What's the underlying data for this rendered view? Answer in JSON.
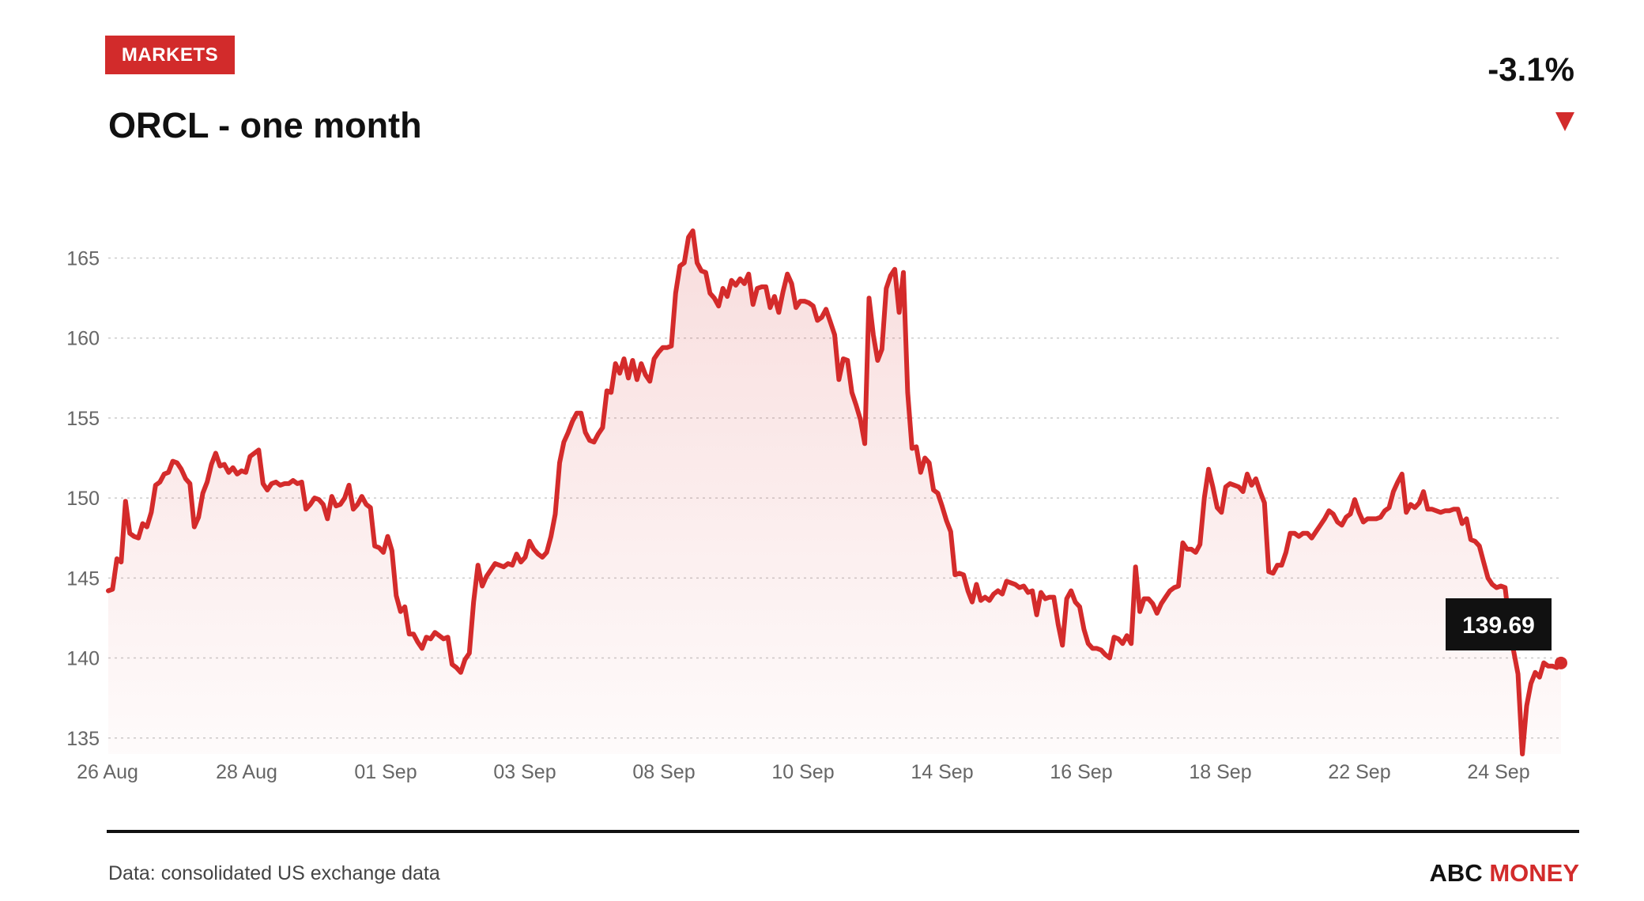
{
  "header": {
    "badge": "MARKETS",
    "title": "ORCL - one month",
    "change": "-3.1%",
    "change_direction_icon": "down-triangle-icon"
  },
  "footer": {
    "source": "Data: consolidated US exchange data",
    "brand_part1": "ABC ",
    "brand_part2": "MONEY"
  },
  "colors": {
    "accent": "#d22b2b",
    "line": "#d42b2b",
    "text": "#111111",
    "axis_text": "#666666",
    "grid": "#cccccc"
  },
  "chart_data": {
    "type": "area",
    "title": "ORCL - one month",
    "ylim": [
      134,
      167
    ],
    "yticks": [
      135,
      140,
      145,
      150,
      155,
      160,
      165
    ],
    "grid": true,
    "x_tick_labels": [
      "26 Aug",
      "28 Aug",
      "01 Sep",
      "03 Sep",
      "08 Sep",
      "10 Sep",
      "14 Sep",
      "16 Sep",
      "18 Sep",
      "22 Sep",
      "24 Sep"
    ],
    "last_value_label": "139.69",
    "series": [
      {
        "values": [
          144.2,
          144.3,
          146.2,
          146.0,
          149.8,
          147.8,
          147.6,
          147.5,
          148.4,
          148.2,
          149.1,
          150.8,
          151.0,
          151.5,
          151.6,
          152.3,
          152.2,
          151.8,
          151.2,
          150.9,
          148.2,
          148.8,
          150.3,
          151.0,
          152.1,
          152.8,
          152.0,
          152.1,
          151.6,
          151.9,
          151.5,
          151.7,
          151.6,
          152.6,
          152.8,
          153.0,
          150.9,
          150.5,
          150.9,
          151.0,
          150.8,
          150.9,
          150.9,
          151.1,
          150.9,
          151.0,
          149.3,
          149.6,
          150.0,
          149.9,
          149.6,
          148.7,
          150.1,
          149.5,
          149.6,
          150.0,
          150.8,
          149.3,
          149.6,
          150.1,
          149.6,
          149.4,
          147.0,
          146.9,
          146.6,
          147.6,
          146.7,
          143.9,
          142.9,
          143.2,
          141.5,
          141.5,
          141.0,
          140.6,
          141.3,
          141.2,
          141.6,
          141.4,
          141.2,
          141.3,
          139.6,
          139.4,
          139.1,
          139.9,
          140.3,
          143.5,
          145.8,
          144.5,
          145.1,
          145.5,
          145.9,
          145.8,
          145.7,
          145.9,
          145.8,
          146.5,
          146.0,
          146.3,
          147.3,
          146.8,
          146.5,
          146.3,
          146.6,
          147.6,
          149.0,
          152.2,
          153.5,
          154.1,
          154.8,
          155.3,
          155.3,
          154.1,
          153.6,
          153.5,
          154.0,
          154.4,
          156.7,
          156.6,
          158.4,
          157.8,
          158.7,
          157.5,
          158.6,
          157.4,
          158.4,
          157.7,
          157.3,
          158.7,
          159.1,
          159.4,
          159.4,
          159.5,
          162.8,
          164.5,
          164.7,
          166.3,
          166.7,
          164.7,
          164.2,
          164.1,
          162.8,
          162.5,
          162.0,
          163.1,
          162.6,
          163.6,
          163.3,
          163.7,
          163.4,
          164.0,
          162.1,
          163.1,
          163.2,
          163.2,
          161.9,
          162.6,
          161.6,
          162.9,
          164.0,
          163.4,
          161.9,
          162.3,
          162.3,
          162.2,
          162.0,
          161.1,
          161.3,
          161.8,
          161.0,
          160.2,
          157.4,
          158.7,
          158.6,
          156.6,
          155.8,
          154.9,
          153.4,
          162.5,
          160.2,
          158.6,
          159.3,
          163.1,
          163.9,
          164.3,
          161.6,
          164.1,
          156.6,
          153.1,
          153.2,
          151.6,
          152.5,
          152.2,
          150.5,
          150.3,
          149.5,
          148.6,
          147.9,
          145.2,
          145.3,
          145.2,
          144.2,
          143.5,
          144.6,
          143.6,
          143.8,
          143.6,
          144.0,
          144.2,
          144.0,
          144.8,
          144.7,
          144.6,
          144.4,
          144.5,
          144.1,
          144.2,
          142.7,
          144.1,
          143.7,
          143.8,
          143.8,
          142.1,
          140.8,
          143.7,
          144.2,
          143.5,
          143.2,
          141.8,
          140.9,
          140.6,
          140.6,
          140.5,
          140.2,
          140.0,
          141.3,
          141.2,
          140.9,
          141.4,
          140.9,
          145.7,
          142.9,
          143.7,
          143.7,
          143.4,
          142.8,
          143.4,
          143.8,
          144.2,
          144.4,
          144.5,
          147.2,
          146.8,
          146.8,
          146.6,
          147.1,
          150.0,
          151.8,
          150.7,
          149.4,
          149.1,
          150.7,
          150.9,
          150.8,
          150.7,
          150.4,
          151.5,
          150.8,
          151.2,
          150.4,
          149.7,
          145.4,
          145.3,
          145.8,
          145.8,
          146.6,
          147.8,
          147.8,
          147.6,
          147.8,
          147.8,
          147.5,
          147.9,
          148.3,
          148.7,
          149.2,
          149.0,
          148.5,
          148.3,
          148.8,
          149.0,
          149.9,
          149.1,
          148.5,
          148.7,
          148.7,
          148.7,
          148.8,
          149.2,
          149.4,
          150.4,
          151.0,
          151.5,
          149.1,
          149.6,
          149.4,
          149.7,
          150.4,
          149.3,
          149.3,
          149.2,
          149.1,
          149.2,
          149.2,
          149.3,
          149.3,
          148.4,
          148.7,
          147.4,
          147.3,
          147.0,
          146.0,
          145.0,
          144.6,
          144.4,
          144.5,
          144.4,
          142.1,
          140.4,
          139.0,
          134.0,
          137.0,
          138.4,
          139.1,
          138.8,
          139.7,
          139.5,
          139.5,
          139.4,
          139.69
        ]
      }
    ]
  }
}
